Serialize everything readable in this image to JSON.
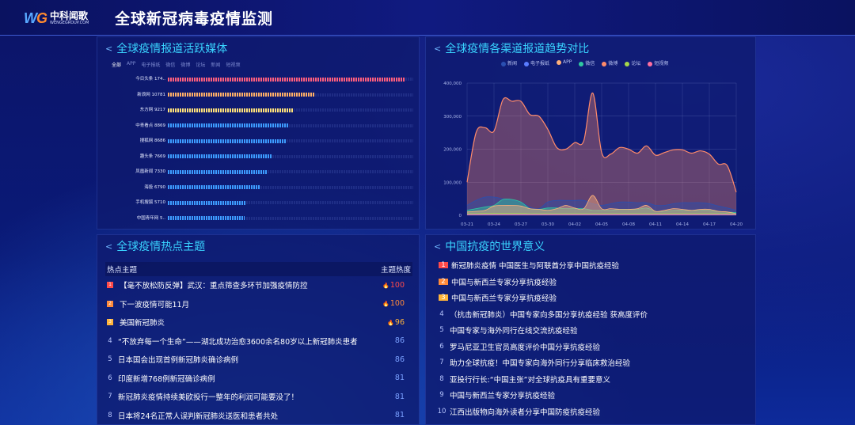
{
  "header": {
    "logo_cn": "中科闻歌",
    "logo_en": "WENGEGROUP.COM",
    "logo_mark": "WG",
    "title": "全球新冠病毒疫情监测"
  },
  "media": {
    "title": "全球疫情报道活跃媒体",
    "tabs": [
      "全部",
      "APP",
      "电子报纸",
      "微信",
      "微博",
      "论坛",
      "新闻",
      "短视频"
    ],
    "max": 17400,
    "items": [
      {
        "label": "今日头条 174..",
        "value": 17400,
        "color": "#ff5f7e"
      },
      {
        "label": "新浪网 10781",
        "value": 10781,
        "color": "#ffb067"
      },
      {
        "label": "东方网 9217",
        "value": 9217,
        "color": "#ffe27a"
      },
      {
        "label": "中青看点 8869",
        "value": 8869,
        "color": "#3d9cff"
      },
      {
        "label": "搜狐网 8686",
        "value": 8686,
        "color": "#3d9cff"
      },
      {
        "label": "趣头条 7669",
        "value": 7669,
        "color": "#3d9cff"
      },
      {
        "label": "凤凰新闻 7330",
        "value": 7330,
        "color": "#3d9cff"
      },
      {
        "label": "海投 6790",
        "value": 6790,
        "color": "#3d9cff"
      },
      {
        "label": "手机搜狐 5710",
        "value": 5710,
        "color": "#3d9cff"
      },
      {
        "label": "中国青年网 5..",
        "value": 5650,
        "color": "#3d9cff"
      }
    ]
  },
  "chart_data": {
    "type": "area",
    "title": "全球疫情各渠道报道趋势对比",
    "ylim": [
      0,
      400000
    ],
    "yticks": [
      "0",
      "100,000",
      "200,000",
      "300,000",
      "400,000"
    ],
    "xticks": [
      "03-21",
      "03-24",
      "03-27",
      "03-30",
      "04-02",
      "04-05",
      "04-08",
      "04-11",
      "04-14",
      "04-17",
      "04-20"
    ],
    "x": [
      "03-21",
      "03-22",
      "03-23",
      "03-24",
      "03-25",
      "03-26",
      "03-27",
      "03-28",
      "03-29",
      "03-30",
      "03-31",
      "04-01",
      "04-02",
      "04-03",
      "04-04",
      "04-05",
      "04-06",
      "04-07",
      "04-08",
      "04-09",
      "04-10",
      "04-11",
      "04-12",
      "04-13",
      "04-14",
      "04-15",
      "04-16",
      "04-17",
      "04-18",
      "04-19",
      "04-20"
    ],
    "series": [
      {
        "name": "新闻",
        "color": "#2a4fb0",
        "values": [
          30000,
          45000,
          55000,
          55000,
          50000,
          45000,
          40000,
          25000,
          20000,
          40000,
          45000,
          45000,
          45000,
          45000,
          35000,
          30000,
          35000,
          40000,
          40000,
          38000,
          38000,
          30000,
          30000,
          35000,
          38000,
          38000,
          38000,
          35000,
          28000,
          22000,
          15000
        ]
      },
      {
        "name": "电子报纸",
        "color": "#5a7dff",
        "values": [
          3000,
          3000,
          3000,
          3000,
          3000,
          3000,
          3000,
          3000,
          3000,
          3000,
          3000,
          3000,
          3000,
          3000,
          3000,
          3000,
          3000,
          3000,
          3000,
          3000,
          3000,
          3000,
          3000,
          3000,
          3000,
          3000,
          3000,
          3000,
          3000,
          3000,
          2000
        ]
      },
      {
        "name": "APP",
        "color": "#ffb07a",
        "values": [
          10000,
          12000,
          15000,
          28000,
          30000,
          30000,
          28000,
          20000,
          18000,
          15000,
          20000,
          30000,
          22000,
          20000,
          60000,
          20000,
          20000,
          18000,
          18000,
          20000,
          30000,
          12000,
          15000,
          20000,
          18000,
          15000,
          18000,
          18000,
          12000,
          10000,
          5000
        ]
      },
      {
        "name": "微信",
        "color": "#2fc9a0",
        "values": [
          15000,
          20000,
          25000,
          30000,
          48000,
          48000,
          40000,
          20000,
          18000,
          22000,
          22000,
          20000,
          20000,
          20000,
          15000,
          15000,
          15000,
          18000,
          18000,
          18000,
          22000,
          12000,
          12000,
          15000,
          15000,
          15000,
          15000,
          15000,
          12000,
          10000,
          8000
        ]
      },
      {
        "name": "微博",
        "color": "#ff8a6a",
        "values": [
          100000,
          250000,
          265000,
          255000,
          350000,
          345000,
          345000,
          305000,
          300000,
          260000,
          205000,
          200000,
          220000,
          225000,
          370000,
          190000,
          185000,
          205000,
          200000,
          188000,
          210000,
          182000,
          190000,
          198000,
          198000,
          188000,
          195000,
          185000,
          155000,
          150000,
          70000
        ]
      },
      {
        "name": "论坛",
        "color": "#a6d84a",
        "values": [
          5000,
          5000,
          6000,
          6000,
          6000,
          6000,
          6000,
          5000,
          5000,
          5000,
          5000,
          5000,
          5000,
          5000,
          5000,
          5000,
          5000,
          5000,
          5000,
          5000,
          5000,
          5000,
          5000,
          5000,
          5000,
          5000,
          5000,
          5000,
          5000,
          5000,
          3000
        ]
      },
      {
        "name": "短视频",
        "color": "#ff6fa0",
        "values": [
          2000,
          2000,
          2000,
          2000,
          2000,
          2000,
          2000,
          2000,
          2000,
          2000,
          2000,
          2000,
          2000,
          2000,
          2000,
          2000,
          2000,
          2000,
          2000,
          2000,
          2000,
          2000,
          2000,
          2000,
          2000,
          2000,
          2000,
          2000,
          2000,
          2000,
          1000
        ]
      }
    ]
  },
  "hot": {
    "title": "全球疫情热点主题",
    "col_topic": "热点主题",
    "col_heat": "主题热度",
    "items": [
      {
        "rank": "1",
        "text": "【毫不放松防反弹】武汉：重点筛查多环节加强疫情防控",
        "heat": "100",
        "fire": "🔥",
        "color": "#ff4a4a"
      },
      {
        "rank": "2",
        "text": "下一波疫情可能11月",
        "heat": "100",
        "fire": "🔥",
        "color": "#ff8a3a"
      },
      {
        "rank": "3",
        "text": "美国新冠肺炎",
        "heat": "96",
        "fire": "🔥",
        "color": "#ffb43a"
      },
      {
        "rank": "4",
        "text": "“不放弃每一个生命”——湖北成功治愈3600余名80岁以上新冠肺炎患者",
        "heat": "86"
      },
      {
        "rank": "5",
        "text": "日本国会出现首例新冠肺炎确诊病例",
        "heat": "86"
      },
      {
        "rank": "6",
        "text": "印度新增768例新冠确诊病例",
        "heat": "81"
      },
      {
        "rank": "7",
        "text": "新冠肺炎疫情持续美欧投行一整年的利润可能要没了！",
        "heat": "81"
      },
      {
        "rank": "8",
        "text": "日本将24名正常人误判新冠肺炎送医和患者共处",
        "heat": "81"
      }
    ]
  },
  "world": {
    "title": "中国抗疫的世界意义",
    "items": [
      {
        "rank": "1",
        "text": "新冠肺炎疫情 中国医生与阿联酋分享中国抗疫经验",
        "color": "#ff4a4a"
      },
      {
        "rank": "2",
        "text": "中国与新西兰专家分享抗疫经验",
        "color": "#ff8a3a"
      },
      {
        "rank": "3",
        "text": "中国与新西兰专家分享抗疫经验",
        "color": "#ffb43a"
      },
      {
        "rank": "4",
        "text": "（抗击新冠肺炎）中国专家向多国分享抗疫经验 获高度评价"
      },
      {
        "rank": "5",
        "text": "中国专家与海外同行在线交流抗疫经验"
      },
      {
        "rank": "6",
        "text": "罗马尼亚卫生官员高度评价中国分享抗疫经验"
      },
      {
        "rank": "7",
        "text": "助力全球抗疫！中国专家向海外同行分享临床救治经验"
      },
      {
        "rank": "8",
        "text": "亚投行行长:“中国主张”对全球抗疫具有重要意义"
      },
      {
        "rank": "9",
        "text": "中国与新西兰专家分享抗疫经验"
      },
      {
        "rank": "10",
        "text": "江西出版物向海外读者分享中国防疫抗疫经验"
      }
    ]
  }
}
